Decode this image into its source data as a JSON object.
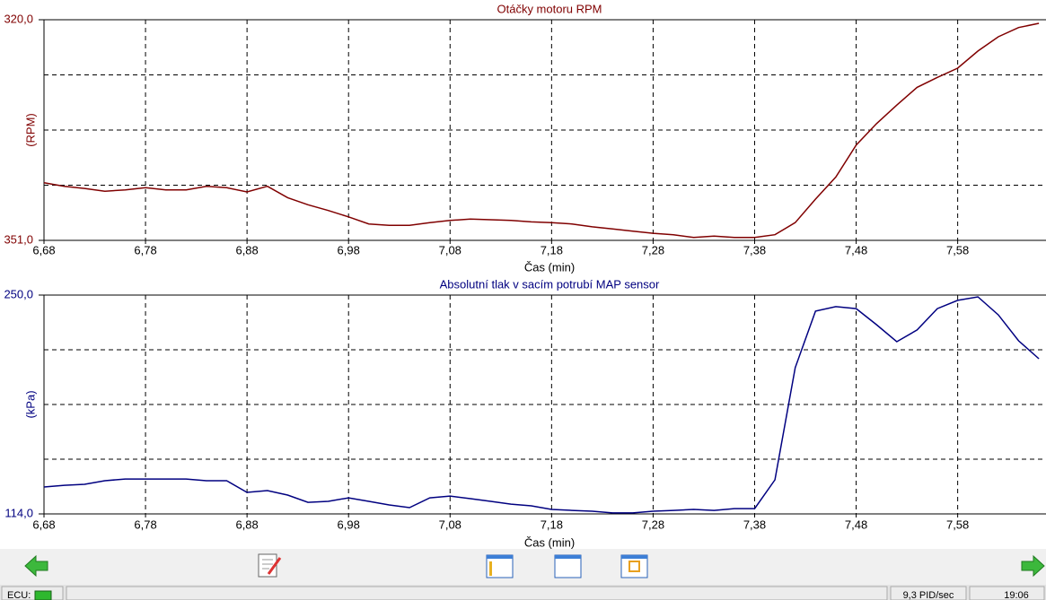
{
  "chart_data": [
    {
      "type": "line",
      "title": "Otáčky motoru RPM",
      "x_label": "Čas (min)",
      "y_label": "(RPM)",
      "color": "#800000",
      "grid": true,
      "xlim": [
        6.68,
        7.667
      ],
      "ylim": [
        351,
        320
      ],
      "xticks": [
        {
          "value": 6.68,
          "label": "6,68"
        },
        {
          "value": 6.78,
          "label": "6,78"
        },
        {
          "value": 6.88,
          "label": "6,88"
        },
        {
          "value": 6.98,
          "label": "6,98"
        },
        {
          "value": 7.08,
          "label": "7,08"
        },
        {
          "value": 7.18,
          "label": "7,18"
        },
        {
          "value": 7.28,
          "label": "7,28"
        },
        {
          "value": 7.38,
          "label": "7,38"
        },
        {
          "value": 7.48,
          "label": "7,48"
        },
        {
          "value": 7.58,
          "label": "7,58"
        }
      ],
      "yticks": [
        {
          "value": 320,
          "label": "320,0"
        },
        {
          "value": 351,
          "label": "351,0"
        }
      ],
      "x": [
        6.68,
        6.7,
        6.72,
        6.74,
        6.76,
        6.78,
        6.8,
        6.82,
        6.84,
        6.86,
        6.88,
        6.9,
        6.92,
        6.94,
        6.96,
        6.98,
        7.0,
        7.02,
        7.04,
        7.06,
        7.08,
        7.1,
        7.12,
        7.14,
        7.16,
        7.18,
        7.2,
        7.22,
        7.24,
        7.26,
        7.28,
        7.3,
        7.32,
        7.34,
        7.36,
        7.38,
        7.4,
        7.42,
        7.44,
        7.46,
        7.48,
        7.5,
        7.52,
        7.54,
        7.56,
        7.58,
        7.6,
        7.62,
        7.64,
        7.66
      ],
      "values": [
        342.9,
        343.4,
        343.7,
        344.1,
        343.9,
        343.6,
        343.9,
        343.9,
        343.4,
        343.6,
        344.2,
        343.4,
        345.0,
        346.0,
        346.8,
        347.7,
        348.7,
        348.9,
        348.9,
        348.5,
        348.2,
        348.0,
        348.1,
        348.2,
        348.4,
        348.5,
        348.7,
        349.1,
        349.4,
        349.7,
        350.0,
        350.2,
        350.6,
        350.4,
        350.6,
        350.6,
        350.2,
        348.5,
        345.2,
        342.1,
        337.6,
        334.6,
        332.0,
        329.5,
        328.1,
        326.8,
        324.4,
        322.4,
        321.1,
        320.5
      ]
    },
    {
      "type": "line",
      "title": "Absolutní tlak v sacím potrubí MAP sensor",
      "x_label": "Čas (min)",
      "y_label": "(kPa)",
      "color": "#000080",
      "grid": true,
      "xlim": [
        6.68,
        7.667
      ],
      "ylim": [
        114,
        250
      ],
      "xticks": [
        {
          "value": 6.68,
          "label": "6,68"
        },
        {
          "value": 6.78,
          "label": "6,78"
        },
        {
          "value": 6.88,
          "label": "6,88"
        },
        {
          "value": 6.98,
          "label": "6,98"
        },
        {
          "value": 7.08,
          "label": "7,08"
        },
        {
          "value": 7.18,
          "label": "7,18"
        },
        {
          "value": 7.28,
          "label": "7,28"
        },
        {
          "value": 7.38,
          "label": "7,38"
        },
        {
          "value": 7.48,
          "label": "7,48"
        },
        {
          "value": 7.58,
          "label": "7,58"
        }
      ],
      "yticks": [
        {
          "value": 250,
          "label": "250,0"
        },
        {
          "value": 114,
          "label": "114,0"
        }
      ],
      "x": [
        6.68,
        6.7,
        6.72,
        6.74,
        6.76,
        6.78,
        6.8,
        6.82,
        6.84,
        6.86,
        6.88,
        6.9,
        6.92,
        6.94,
        6.96,
        6.98,
        7.0,
        7.02,
        7.04,
        7.06,
        7.08,
        7.1,
        7.12,
        7.14,
        7.16,
        7.18,
        7.2,
        7.22,
        7.24,
        7.26,
        7.28,
        7.3,
        7.32,
        7.34,
        7.36,
        7.38,
        7.4,
        7.42,
        7.44,
        7.46,
        7.48,
        7.5,
        7.52,
        7.54,
        7.56,
        7.58,
        7.6,
        7.62,
        7.64,
        7.66
      ],
      "values": [
        130.7,
        131.8,
        132.4,
        134.6,
        135.7,
        135.7,
        135.7,
        135.7,
        134.6,
        134.6,
        127.4,
        128.5,
        125.7,
        121.2,
        121.8,
        124.0,
        121.8,
        119.6,
        117.9,
        124.0,
        125.1,
        123.5,
        121.8,
        120.1,
        119.0,
        116.8,
        116.2,
        115.7,
        114.6,
        114.6,
        115.7,
        116.2,
        116.8,
        116.2,
        117.3,
        117.3,
        135.2,
        204.9,
        240.0,
        242.8,
        241.6,
        231.6,
        221.0,
        228.3,
        241.6,
        246.7,
        248.9,
        237.7,
        221.6,
        210.4
      ]
    }
  ],
  "status_bar": {
    "ecu": "ECU:",
    "rate": "9,3 PID/sec",
    "time": "19:06"
  }
}
